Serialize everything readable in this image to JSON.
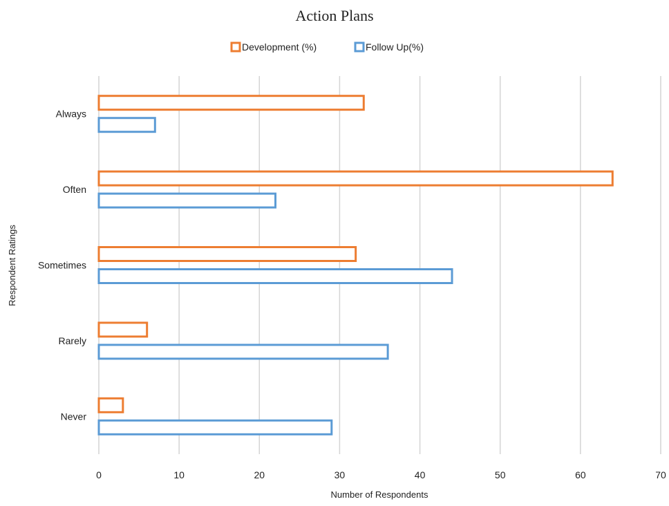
{
  "chart_data": {
    "type": "bar",
    "orientation": "horizontal",
    "title": "Action Plans",
    "xlabel": "Number of Respondents",
    "ylabel": "Respondent Ratings",
    "categories": [
      "Always",
      "Often",
      "Sometimes",
      "Rarely",
      "Never"
    ],
    "series": [
      {
        "name": "Development (%)",
        "color": "#ed7d31",
        "values": [
          33,
          64,
          32,
          6,
          3
        ]
      },
      {
        "name": "Follow Up(%)",
        "color": "#5b9bd5",
        "values": [
          7,
          22,
          44,
          36,
          29
        ]
      }
    ],
    "xlim": [
      0,
      70
    ],
    "xticks": [
      0,
      10,
      20,
      30,
      40,
      50,
      60,
      70
    ],
    "grid": true,
    "legend_position": "top"
  }
}
